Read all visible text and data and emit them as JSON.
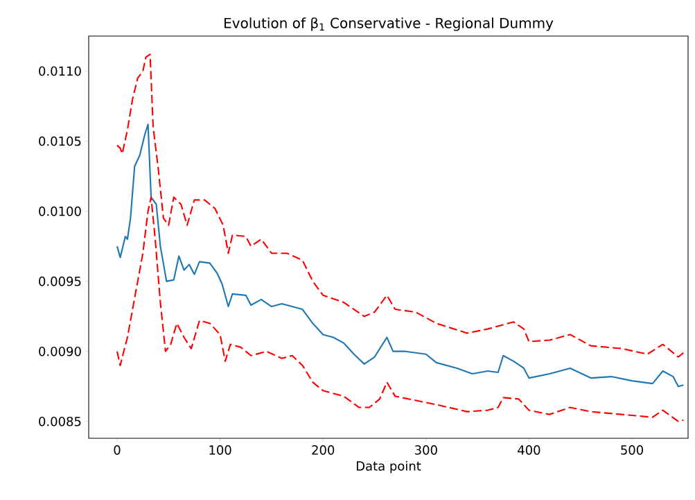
{
  "chart_data": {
    "type": "line",
    "title": "Evolution of β$_{1}$ Conservative - Regional Dummy",
    "xlabel": "Data point",
    "xlim": [
      -27.6,
      554.5
    ],
    "ylim": [
      0.00838,
      0.01125
    ],
    "xticks": [
      0,
      100,
      200,
      300,
      400,
      500
    ],
    "yticks": [
      {
        "value": 0.0085,
        "label": "0.0085"
      },
      {
        "value": 0.009,
        "label": "0.0090"
      },
      {
        "value": 0.0095,
        "label": "0.0095"
      },
      {
        "value": 0.01,
        "label": "0.0100"
      },
      {
        "value": 0.0105,
        "label": "0.0105"
      },
      {
        "value": 0.011,
        "label": "0.0110"
      }
    ],
    "grid": false,
    "series": [
      {
        "color": "#1f77b4",
        "line_style": "solid",
        "x": [
          0,
          3,
          8,
          10,
          13,
          17,
          22,
          27,
          30,
          33,
          38,
          42,
          48,
          55,
          60,
          65,
          70,
          75,
          80,
          90,
          97,
          102,
          108,
          112,
          125,
          130,
          140,
          150,
          160,
          170,
          180,
          190,
          200,
          210,
          220,
          230,
          240,
          250,
          262,
          268,
          280,
          300,
          310,
          330,
          345,
          360,
          370,
          375,
          385,
          395,
          400,
          420,
          440,
          460,
          480,
          500,
          520,
          530,
          540,
          545,
          550
        ],
        "values": [
          0.00975,
          0.00967,
          0.00982,
          0.0098,
          0.00995,
          0.01032,
          0.0104,
          0.01055,
          0.01062,
          0.0101,
          0.01005,
          0.00975,
          0.0095,
          0.00951,
          0.00968,
          0.00958,
          0.00962,
          0.00955,
          0.00964,
          0.00963,
          0.00956,
          0.00948,
          0.00932,
          0.00941,
          0.0094,
          0.00933,
          0.00937,
          0.00932,
          0.00934,
          0.00932,
          0.0093,
          0.0092,
          0.00912,
          0.0091,
          0.00906,
          0.00898,
          0.00891,
          0.00896,
          0.0091,
          0.009,
          0.009,
          0.00898,
          0.00892,
          0.00888,
          0.00884,
          0.00886,
          0.00885,
          0.00897,
          0.00893,
          0.00888,
          0.00881,
          0.00884,
          0.00888,
          0.00881,
          0.00882,
          0.00879,
          0.00877,
          0.00886,
          0.00882,
          0.00875,
          0.00876
        ]
      },
      {
        "color": "#ff0000",
        "line_style": "dashed",
        "x": [
          0,
          3,
          5,
          10,
          15,
          20,
          25,
          28,
          32,
          35,
          40,
          45,
          50,
          55,
          62,
          68,
          75,
          85,
          95,
          103,
          108,
          112,
          125,
          130,
          140,
          150,
          165,
          180,
          190,
          200,
          220,
          240,
          250,
          262,
          270,
          290,
          310,
          340,
          360,
          370,
          385,
          395,
          400,
          420,
          440,
          460,
          490,
          515,
          530,
          545,
          550
        ],
        "values": [
          0.01047,
          0.01045,
          0.01041,
          0.01058,
          0.0108,
          0.01095,
          0.011,
          0.0111,
          0.01112,
          0.0106,
          0.0103,
          0.00995,
          0.0099,
          0.0101,
          0.01005,
          0.0099,
          0.01008,
          0.01008,
          0.01002,
          0.0099,
          0.0097,
          0.00983,
          0.00982,
          0.00975,
          0.0098,
          0.0097,
          0.0097,
          0.00965,
          0.0095,
          0.0094,
          0.00935,
          0.00925,
          0.00928,
          0.0094,
          0.0093,
          0.00928,
          0.0092,
          0.00913,
          0.00916,
          0.00918,
          0.00921,
          0.00916,
          0.00907,
          0.00908,
          0.00912,
          0.00904,
          0.00902,
          0.00898,
          0.00905,
          0.00896,
          0.00899
        ]
      },
      {
        "color": "#ff0000",
        "line_style": "dashed",
        "x": [
          0,
          3,
          10,
          15,
          20,
          25,
          30,
          33,
          37,
          42,
          47,
          52,
          58,
          65,
          72,
          80,
          90,
          100,
          105,
          110,
          120,
          130,
          145,
          160,
          170,
          180,
          190,
          200,
          220,
          235,
          245,
          255,
          262,
          270,
          290,
          310,
          340,
          360,
          370,
          375,
          390,
          400,
          420,
          440,
          460,
          490,
          520,
          530,
          545,
          550
        ],
        "values": [
          0.009,
          0.0089,
          0.0091,
          0.0093,
          0.0095,
          0.0097,
          0.01,
          0.0101,
          0.0098,
          0.00935,
          0.009,
          0.00905,
          0.0092,
          0.0091,
          0.00902,
          0.00922,
          0.0092,
          0.00912,
          0.00893,
          0.00905,
          0.00903,
          0.00897,
          0.009,
          0.00895,
          0.00897,
          0.0089,
          0.00878,
          0.00872,
          0.00868,
          0.0086,
          0.0086,
          0.00866,
          0.00878,
          0.00868,
          0.00865,
          0.00862,
          0.00857,
          0.00858,
          0.0086,
          0.00867,
          0.00866,
          0.00858,
          0.00855,
          0.0086,
          0.00857,
          0.00855,
          0.00853,
          0.00858,
          0.0085,
          0.00851
        ]
      }
    ]
  }
}
